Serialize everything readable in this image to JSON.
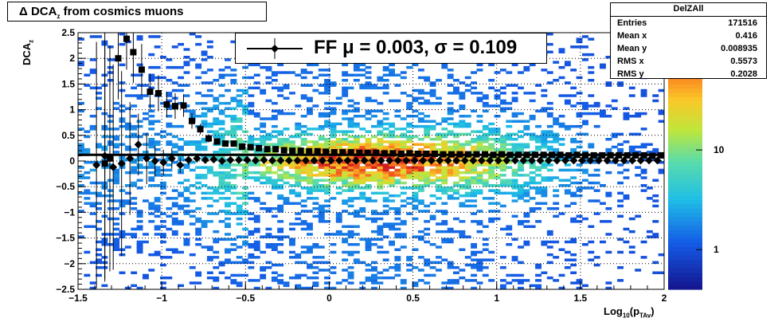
{
  "title": {
    "prefix": "Δ DCA",
    "sub": "z",
    "suffix": " from cosmics muons"
  },
  "stats": {
    "name": "DelZAll",
    "rows": [
      {
        "label": "Entries",
        "value": "171516"
      },
      {
        "label": "Mean x",
        "value": "0.416"
      },
      {
        "label": "Mean y",
        "value": "0.008935"
      },
      {
        "label": "RMS x",
        "value": "0.5573"
      },
      {
        "label": "RMS y",
        "value": "0.2028"
      }
    ]
  },
  "legend": {
    "text": "FF μ =  0.003, σ =   0.109"
  },
  "axes": {
    "ylabel_main": "DCA",
    "ylabel_sub": "z",
    "xlabel_prefix": "Log",
    "xlabel_sub1": "10",
    "xlabel_mid": "(p",
    "xlabel_sub2": "TAv",
    "xlabel_suffix": ")"
  },
  "chart_data": {
    "type": "heatmap",
    "title": "Δ DCA_z from cosmics muons",
    "xlabel": "Log_10(p_TAv)",
    "ylabel": "DCA_z",
    "xlim": [
      -1.5,
      2
    ],
    "ylim": [
      -2.5,
      2.5
    ],
    "x_ticks": [
      -1.5,
      -1,
      -0.5,
      0,
      0.5,
      1,
      1.5,
      2
    ],
    "x_tick_labels": [
      "−1.5",
      "−1",
      "−0.5",
      "0",
      "0.5",
      "1",
      "1.5",
      "2"
    ],
    "y_ticks": [
      -2.5,
      -2,
      -1.5,
      -1,
      -0.5,
      0,
      0.5,
      1,
      1.5,
      2,
      2.5
    ],
    "y_tick_labels": [
      "−2.5",
      "−2",
      "−1.5",
      "−1",
      "−0.5",
      "0",
      "0.5",
      "1",
      "1.5",
      "2",
      "2.5"
    ],
    "color_scale": "log",
    "z_tick_labels": [
      "1",
      "10"
    ],
    "z_ticks": [
      1,
      10
    ],
    "zlim": [
      0.4,
      150
    ],
    "grid": true,
    "fit_line_y": 0.12,
    "series": [
      {
        "name": "",
        "marker": "square",
        "x": [
          -1.34,
          -1.31,
          -1.26,
          -1.21,
          -1.17,
          -1.12,
          -1.07,
          -1.02,
          -0.97,
          -0.92,
          -0.87,
          -0.82,
          -0.77,
          -0.72,
          -0.67,
          -0.62,
          -0.57,
          -0.52,
          -0.47,
          -0.42,
          -0.37,
          -0.32,
          -0.27,
          -0.22,
          -0.17,
          -0.12,
          -0.07,
          -0.02,
          0.03,
          0.08,
          0.13,
          0.18,
          0.23,
          0.28,
          0.33,
          0.38,
          0.43,
          0.48,
          0.53,
          0.58,
          0.63,
          0.68,
          0.73,
          0.78,
          0.83,
          0.88,
          0.93,
          0.98,
          1.03,
          1.08,
          1.13,
          1.18,
          1.23,
          1.28,
          1.33,
          1.38,
          1.43,
          1.48,
          1.53,
          1.58,
          1.63,
          1.68,
          1.73,
          1.78,
          1.83,
          1.88,
          1.93,
          1.98
        ],
        "y": [
          -0.05,
          0.05,
          2.0,
          2.38,
          2.12,
          1.78,
          1.35,
          1.32,
          1.1,
          1.07,
          1.08,
          0.78,
          0.62,
          0.44,
          0.38,
          0.34,
          0.34,
          0.28,
          0.27,
          0.25,
          0.23,
          0.23,
          0.21,
          0.2,
          0.2,
          0.19,
          0.19,
          0.18,
          0.17,
          0.17,
          0.17,
          0.16,
          0.16,
          0.16,
          0.15,
          0.15,
          0.14,
          0.15,
          0.14,
          0.14,
          0.14,
          0.13,
          0.13,
          0.13,
          0.13,
          0.13,
          0.13,
          0.12,
          0.13,
          0.12,
          0.12,
          0.12,
          0.12,
          0.12,
          0.12,
          0.12,
          0.11,
          0.12,
          0.11,
          0.11,
          0.11,
          0.11,
          0.11,
          0.11,
          0.11,
          0.11,
          0.1,
          0.11
        ],
        "err": [
          2.3,
          2.2,
          0.8,
          0.6,
          0.6,
          0.5,
          0.35,
          0.35,
          0.25,
          0.25,
          0.22,
          0.15,
          0.1,
          0.08,
          0.06,
          0.05,
          0.04,
          0.04,
          0.03,
          0.03,
          0.03,
          0.03,
          0.02,
          0.02,
          0.02,
          0.02,
          0.02,
          0.02,
          0.02,
          0.02,
          0.02,
          0.02,
          0.02,
          0.02,
          0.02,
          0.02,
          0.02,
          0.02,
          0.02,
          0.02,
          0.02,
          0.02,
          0.02,
          0.02,
          0.02,
          0.02,
          0.02,
          0.02,
          0.02,
          0.02,
          0.02,
          0.02,
          0.02,
          0.02,
          0.02,
          0.02,
          0.02,
          0.02,
          0.02,
          0.02,
          0.02,
          0.02,
          0.02,
          0.02,
          0.02,
          0.02,
          0.02,
          0.02
        ]
      },
      {
        "name": "FF",
        "marker": "diamond",
        "x": [
          -1.39,
          -1.34,
          -1.29,
          -1.24,
          -1.19,
          -1.14,
          -1.09,
          -1.04,
          -0.99,
          -0.94,
          -0.89,
          -0.84,
          -0.79,
          -0.74,
          -0.69,
          -0.64,
          -0.59,
          -0.54,
          -0.49,
          -0.44,
          -0.39,
          -0.34,
          -0.29,
          -0.24,
          -0.19,
          -0.14,
          -0.09,
          -0.04,
          0.01,
          0.06,
          0.11,
          0.16,
          0.21,
          0.26,
          0.31,
          0.36,
          0.41,
          0.46,
          0.51,
          0.56,
          0.61,
          0.66,
          0.71,
          0.76,
          0.81,
          0.86,
          0.91,
          0.96,
          1.01,
          1.06,
          1.11,
          1.16,
          1.21,
          1.26,
          1.31,
          1.36,
          1.41,
          1.46,
          1.51,
          1.56,
          1.61,
          1.66,
          1.71,
          1.76,
          1.81,
          1.86,
          1.91,
          1.96
        ],
        "y": [
          -0.08,
          0.1,
          -0.12,
          -0.05,
          0.05,
          0.32,
          0.05,
          0.0,
          -0.03,
          0.05,
          -0.08,
          0.02,
          0.05,
          0.02,
          0.03,
          0.0,
          0.02,
          0.02,
          0.02,
          0.01,
          0.02,
          0.01,
          0.01,
          0.01,
          0.01,
          0.01,
          0.01,
          0.01,
          0.01,
          0.01,
          0.01,
          0.01,
          0.01,
          0.01,
          0.01,
          0.01,
          0.01,
          0.01,
          0.01,
          0.01,
          0.01,
          0.01,
          0.01,
          0.01,
          0.01,
          0.01,
          0.01,
          0.01,
          0.01,
          0.01,
          0.01,
          0.01,
          0.01,
          0.01,
          0.01,
          0.01,
          0.01,
          0.01,
          0.01,
          0.01,
          0.01,
          0.01,
          0.01,
          0.01,
          0.01,
          0.01,
          0.01,
          0.01
        ],
        "err": [
          2.4,
          2.4,
          2.0,
          1.8,
          1.1,
          0.6,
          0.5,
          0.3,
          0.25,
          0.2,
          0.15,
          0.1,
          0.08,
          0.06,
          0.05,
          0.04,
          0.03,
          0.03,
          0.02,
          0.02,
          0.02,
          0.02,
          0.02,
          0.02,
          0.02,
          0.02,
          0.02,
          0.02,
          0.02,
          0.02,
          0.02,
          0.02,
          0.02,
          0.02,
          0.02,
          0.02,
          0.02,
          0.02,
          0.02,
          0.02,
          0.02,
          0.02,
          0.02,
          0.02,
          0.02,
          0.02,
          0.02,
          0.02,
          0.02,
          0.02,
          0.02,
          0.02,
          0.02,
          0.02,
          0.02,
          0.02,
          0.02,
          0.02,
          0.02,
          0.02,
          0.02,
          0.02,
          0.02,
          0.02,
          0.02,
          0.02,
          0.02,
          0.02
        ]
      }
    ]
  }
}
